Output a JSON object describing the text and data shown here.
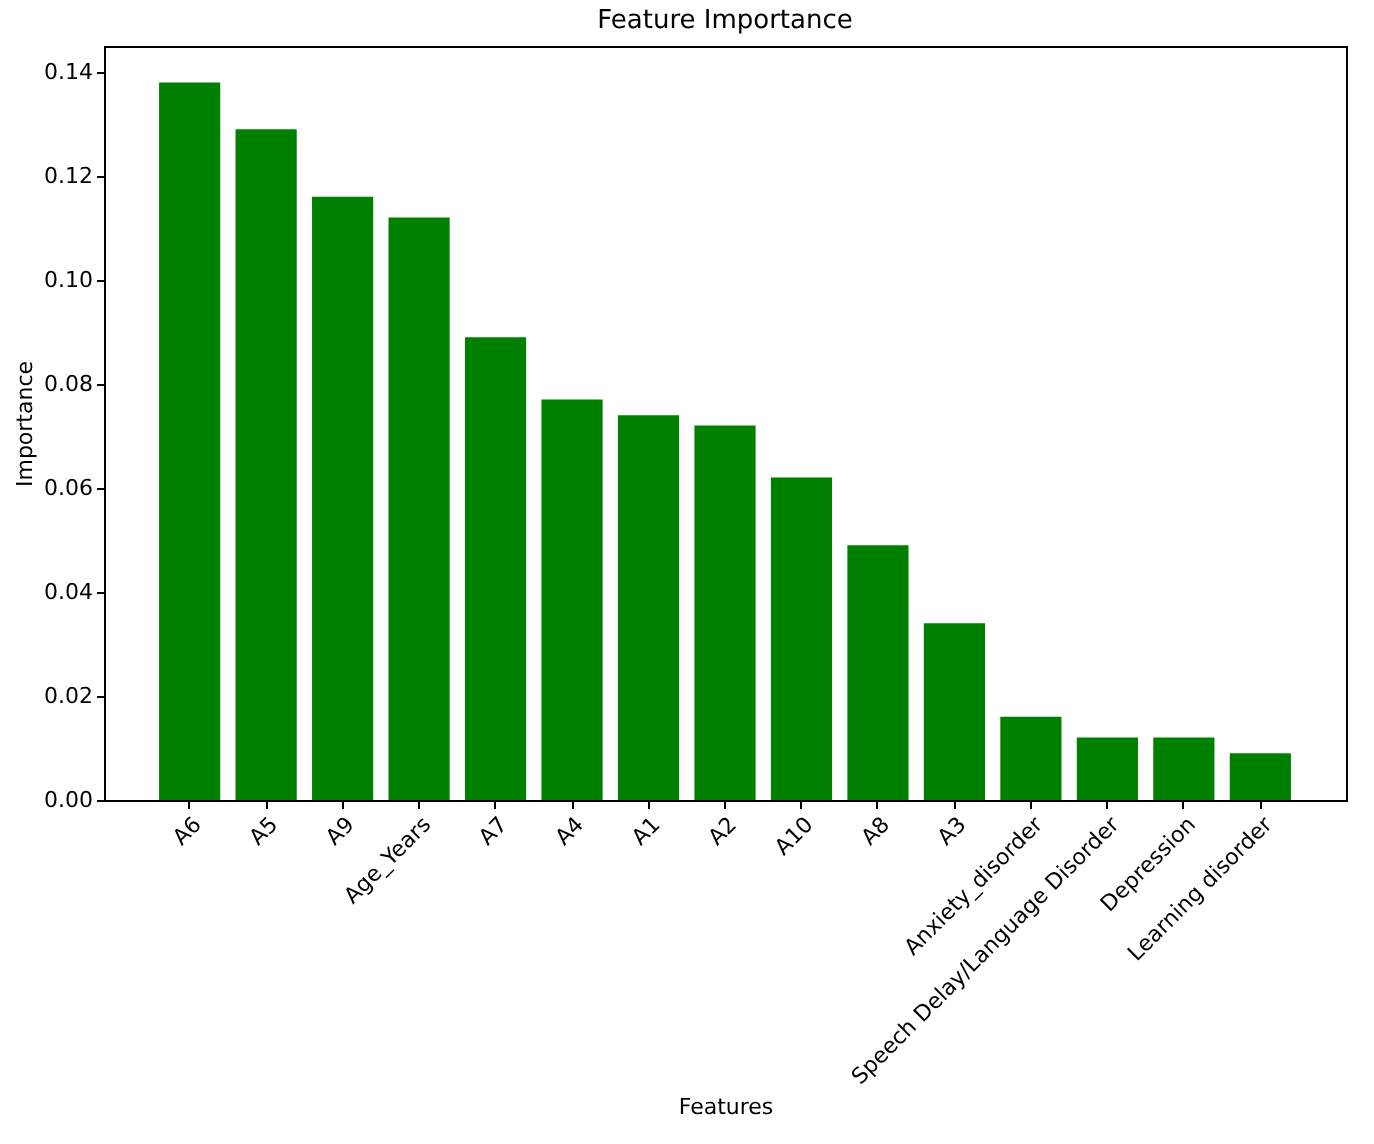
{
  "chart_data": {
    "type": "bar",
    "title": "Feature Importance",
    "xlabel": "Features",
    "ylabel": "Importance",
    "categories": [
      "A6",
      "A5",
      "A9",
      "Age_Years",
      "A7",
      "A4",
      "A1",
      "A2",
      "A10",
      "A8",
      "A3",
      "Anxiety_disorder",
      "Speech Delay/Language Disorder",
      "Depression",
      "Learning disorder"
    ],
    "values": [
      0.138,
      0.129,
      0.116,
      0.112,
      0.089,
      0.077,
      0.074,
      0.072,
      0.062,
      0.049,
      0.034,
      0.016,
      0.012,
      0.012,
      0.009
    ],
    "color": "#008000",
    "ylim": [
      0,
      0.145
    ],
    "yticks": [
      {
        "value": 0,
        "label": "0.00"
      },
      {
        "value": 0.02,
        "label": "0.02"
      },
      {
        "value": 0.04,
        "label": "0.04"
      },
      {
        "value": 0.06,
        "label": "0.06"
      },
      {
        "value": 0.08,
        "label": "0.08"
      },
      {
        "value": 0.1,
        "label": "0.10"
      },
      {
        "value": 0.12,
        "label": "0.12"
      },
      {
        "value": 0.14,
        "label": "0.14"
      }
    ],
    "grid": false
  }
}
